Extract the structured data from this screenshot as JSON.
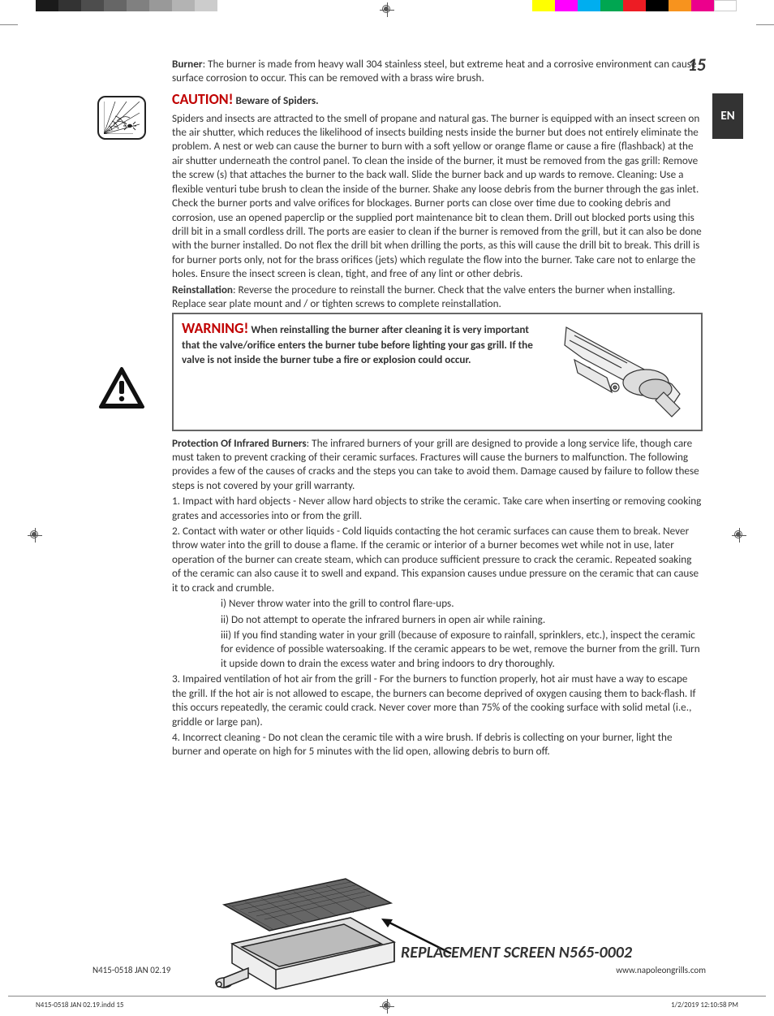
{
  "page": {
    "number": "15",
    "lang_tab": "EN"
  },
  "colorbars": {
    "grays": [
      "#1a1a1a",
      "#333333",
      "#4d4d4d",
      "#666666",
      "#808080",
      "#999999",
      "#b3b3b3",
      "#cccccc"
    ],
    "colors": [
      "#ffff00",
      "#ff00ff",
      "#00aeef",
      "#00a651",
      "#ed1c24",
      "#000000",
      "#f7931e",
      "#ec008c",
      "#ffffff"
    ]
  },
  "burner_intro": {
    "label": "Burner",
    "text": ": The burner is made from heavy wall 304 stainless steel, but extreme heat and a corrosive environment can cause surface corrosion to occur. This can be removed with a brass wire brush."
  },
  "caution": {
    "word": "CAUTION!",
    "title": " Beware of Spiders.",
    "body": "Spiders and insects are attracted to the smell of propane and natural gas.  The burner is equipped with an insect screen on the air shutter, which reduces the likelihood of insects building nests inside the burner but does not entirely eliminate the problem. A nest or web can cause the burner to burn with a soft yellow or orange flame or cause a fire (flashback) at the air shutter underneath the control panel.  To clean the inside of the burner, it must be removed from the gas grill:  Remove the screw (s) that attaches the burner to the back wall. Slide the burner back and up wards to remove. Cleaning: Use a flexible venturi tube brush to clean the inside of the burner. Shake any loose debris from the burner through the gas inlet. Check the burner ports and valve orifices for blockages. Burner ports can close over time due to cooking debris and corrosion, use an opened paperclip or the supplied port maintenance bit to clean them.  Drill out blocked ports using this drill bit in a small cordless drill. The ports are easier to clean if the burner is removed from the grill, but it can also be done with the burner installed. Do not flex the drill bit when drilling the ports, as this will cause the drill bit to break. This drill is for burner ports only, not for the brass orifices (jets) which regulate the flow into the burner. Take care not to enlarge the holes.  Ensure the insect screen is clean, tight, and free of any lint or other debris."
  },
  "reinstall": {
    "label": "Reinstallation",
    "text": ": Reverse the procedure to reinstall the burner. Check that the valve enters the burner when installing. Replace sear plate mount and / or tighten screws to complete reinstallation."
  },
  "warning": {
    "word": "WARNING!",
    "text": " When reinstalling the burner after cleaning it is very important that the valve/orifice enters the burner tube before lighting your gas grill. If the valve is not inside the burner tube a fire or explosion could occur."
  },
  "protection": {
    "label": "Protection Of Infrared Burners",
    "intro": ": The infrared burners of your grill are designed to provide a long service life, though care must taken to prevent cracking of their ceramic surfaces. Fractures will cause the burners to malfunction. The following provides a few of the causes of cracks and the steps you can take to avoid them. Damage caused by failure to follow these steps is not covered by your grill warranty.",
    "item1": "1.  Impact with hard objects - Never allow hard objects to strike the ceramic. Take care when inserting or removing cooking grates and accessories into or from the grill.",
    "item2": "2.  Contact with water or other liquids - Cold liquids contacting the hot ceramic surfaces can cause them to break. Never throw water into the grill to douse a flame. If the ceramic or interior of a burner becomes wet while not in use, later operation of the burner can create steam, which can produce sufficient pressure to crack the ceramic. Repeated soaking of the ceramic can also cause it to swell and expand. This expansion causes undue pressure on the ceramic that can cause it to crack and crumble.",
    "sub_i": "i)   Never throw water into the grill to control flare-ups.",
    "sub_ii": "ii)  Do not attempt to operate the infrared burners in open air while raining.",
    "sub_iii": "iii) If you find standing water in your grill (because of exposure to rainfall, sprinklers, etc.), inspect the ceramic for evidence of possible watersoaking. If the ceramic appears to be wet, remove the burner from the grill. Turn it upside down to drain the excess water and bring indoors to dry thoroughly.",
    "item3": "3.  Impaired ventilation of hot air from the grill - For the burners to function properly, hot air must have a way to escape the grill.  If the hot air is not allowed to escape, the burners can become deprived of oxygen causing them to back-flash. If this occurs repeatedly, the ceramic could crack. Never cover more than 75% of the cooking surface with solid metal (i.e., griddle or large pan).",
    "item4": "4.  Incorrect cleaning - Do not clean the ceramic tile with a wire brush. If debris is collecting on your burner, light the burner and operate on high for 5 minutes with the lid open, allowing debris to burn off."
  },
  "replacement_label": "REPLACEMENT SCREEN N565-0002",
  "footer": {
    "left": "N415-0518 JAN 02.19",
    "right": "www.napoleongrills.com"
  },
  "slug": {
    "file": "N415-0518 JAN 02.19.indd   15",
    "datetime": "1/2/2019   12:10:58 PM"
  },
  "icons": {
    "spider_name": "spider-web-icon",
    "warning_name": "warning-triangle-icon",
    "burner_valve_name": "burner-valve-diagram",
    "burner_screen_name": "infrared-burner-screen-diagram"
  }
}
